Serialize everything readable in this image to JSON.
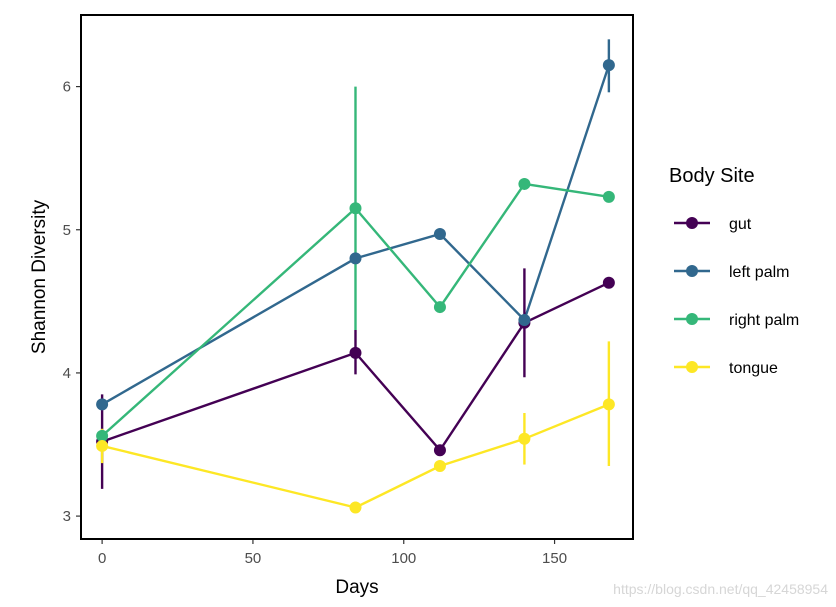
{
  "chart_data": {
    "type": "line",
    "title": "",
    "xlabel": "Days",
    "ylabel": "Shannon Diversity",
    "xlim": [
      -7,
      176
    ],
    "ylim": [
      2.84,
      6.5
    ],
    "xticks": [
      0,
      50,
      100,
      150
    ],
    "yticks": [
      3,
      4,
      5,
      6
    ],
    "legend_title": "Body Site",
    "legend_position": "right",
    "series": [
      {
        "name": "gut",
        "color": "#440154",
        "x": [
          0,
          84,
          112,
          140,
          168
        ],
        "y": [
          3.52,
          4.14,
          3.46,
          4.35,
          4.63
        ],
        "err_low": [
          3.19,
          3.99,
          3.46,
          3.97,
          4.63
        ],
        "err_high": [
          3.85,
          4.3,
          3.46,
          4.73,
          4.63
        ]
      },
      {
        "name": "left palm",
        "color": "#31688E",
        "x": [
          0,
          84,
          112,
          140,
          168
        ],
        "y": [
          3.78,
          4.8,
          4.97,
          4.37,
          6.15
        ],
        "err_low": [
          3.78,
          4.8,
          4.97,
          4.37,
          5.96
        ],
        "err_high": [
          3.78,
          4.8,
          4.97,
          4.37,
          6.33
        ]
      },
      {
        "name": "right palm",
        "color": "#35B779",
        "x": [
          0,
          84,
          112,
          140,
          168
        ],
        "y": [
          3.56,
          5.15,
          4.46,
          5.32,
          5.23
        ],
        "err_low": [
          3.56,
          4.3,
          4.46,
          5.32,
          5.23
        ],
        "err_high": [
          3.56,
          6.0,
          4.46,
          5.32,
          5.23
        ]
      },
      {
        "name": "tongue",
        "color": "#FDE725",
        "x": [
          0,
          84,
          112,
          140,
          168
        ],
        "y": [
          3.49,
          3.06,
          3.35,
          3.54,
          3.78
        ],
        "err_low": [
          3.37,
          3.03,
          3.35,
          3.36,
          3.35
        ],
        "err_high": [
          3.61,
          3.1,
          3.35,
          3.72,
          4.22
        ]
      }
    ]
  },
  "watermark": "https://blog.csdn.net/qq_42458954"
}
